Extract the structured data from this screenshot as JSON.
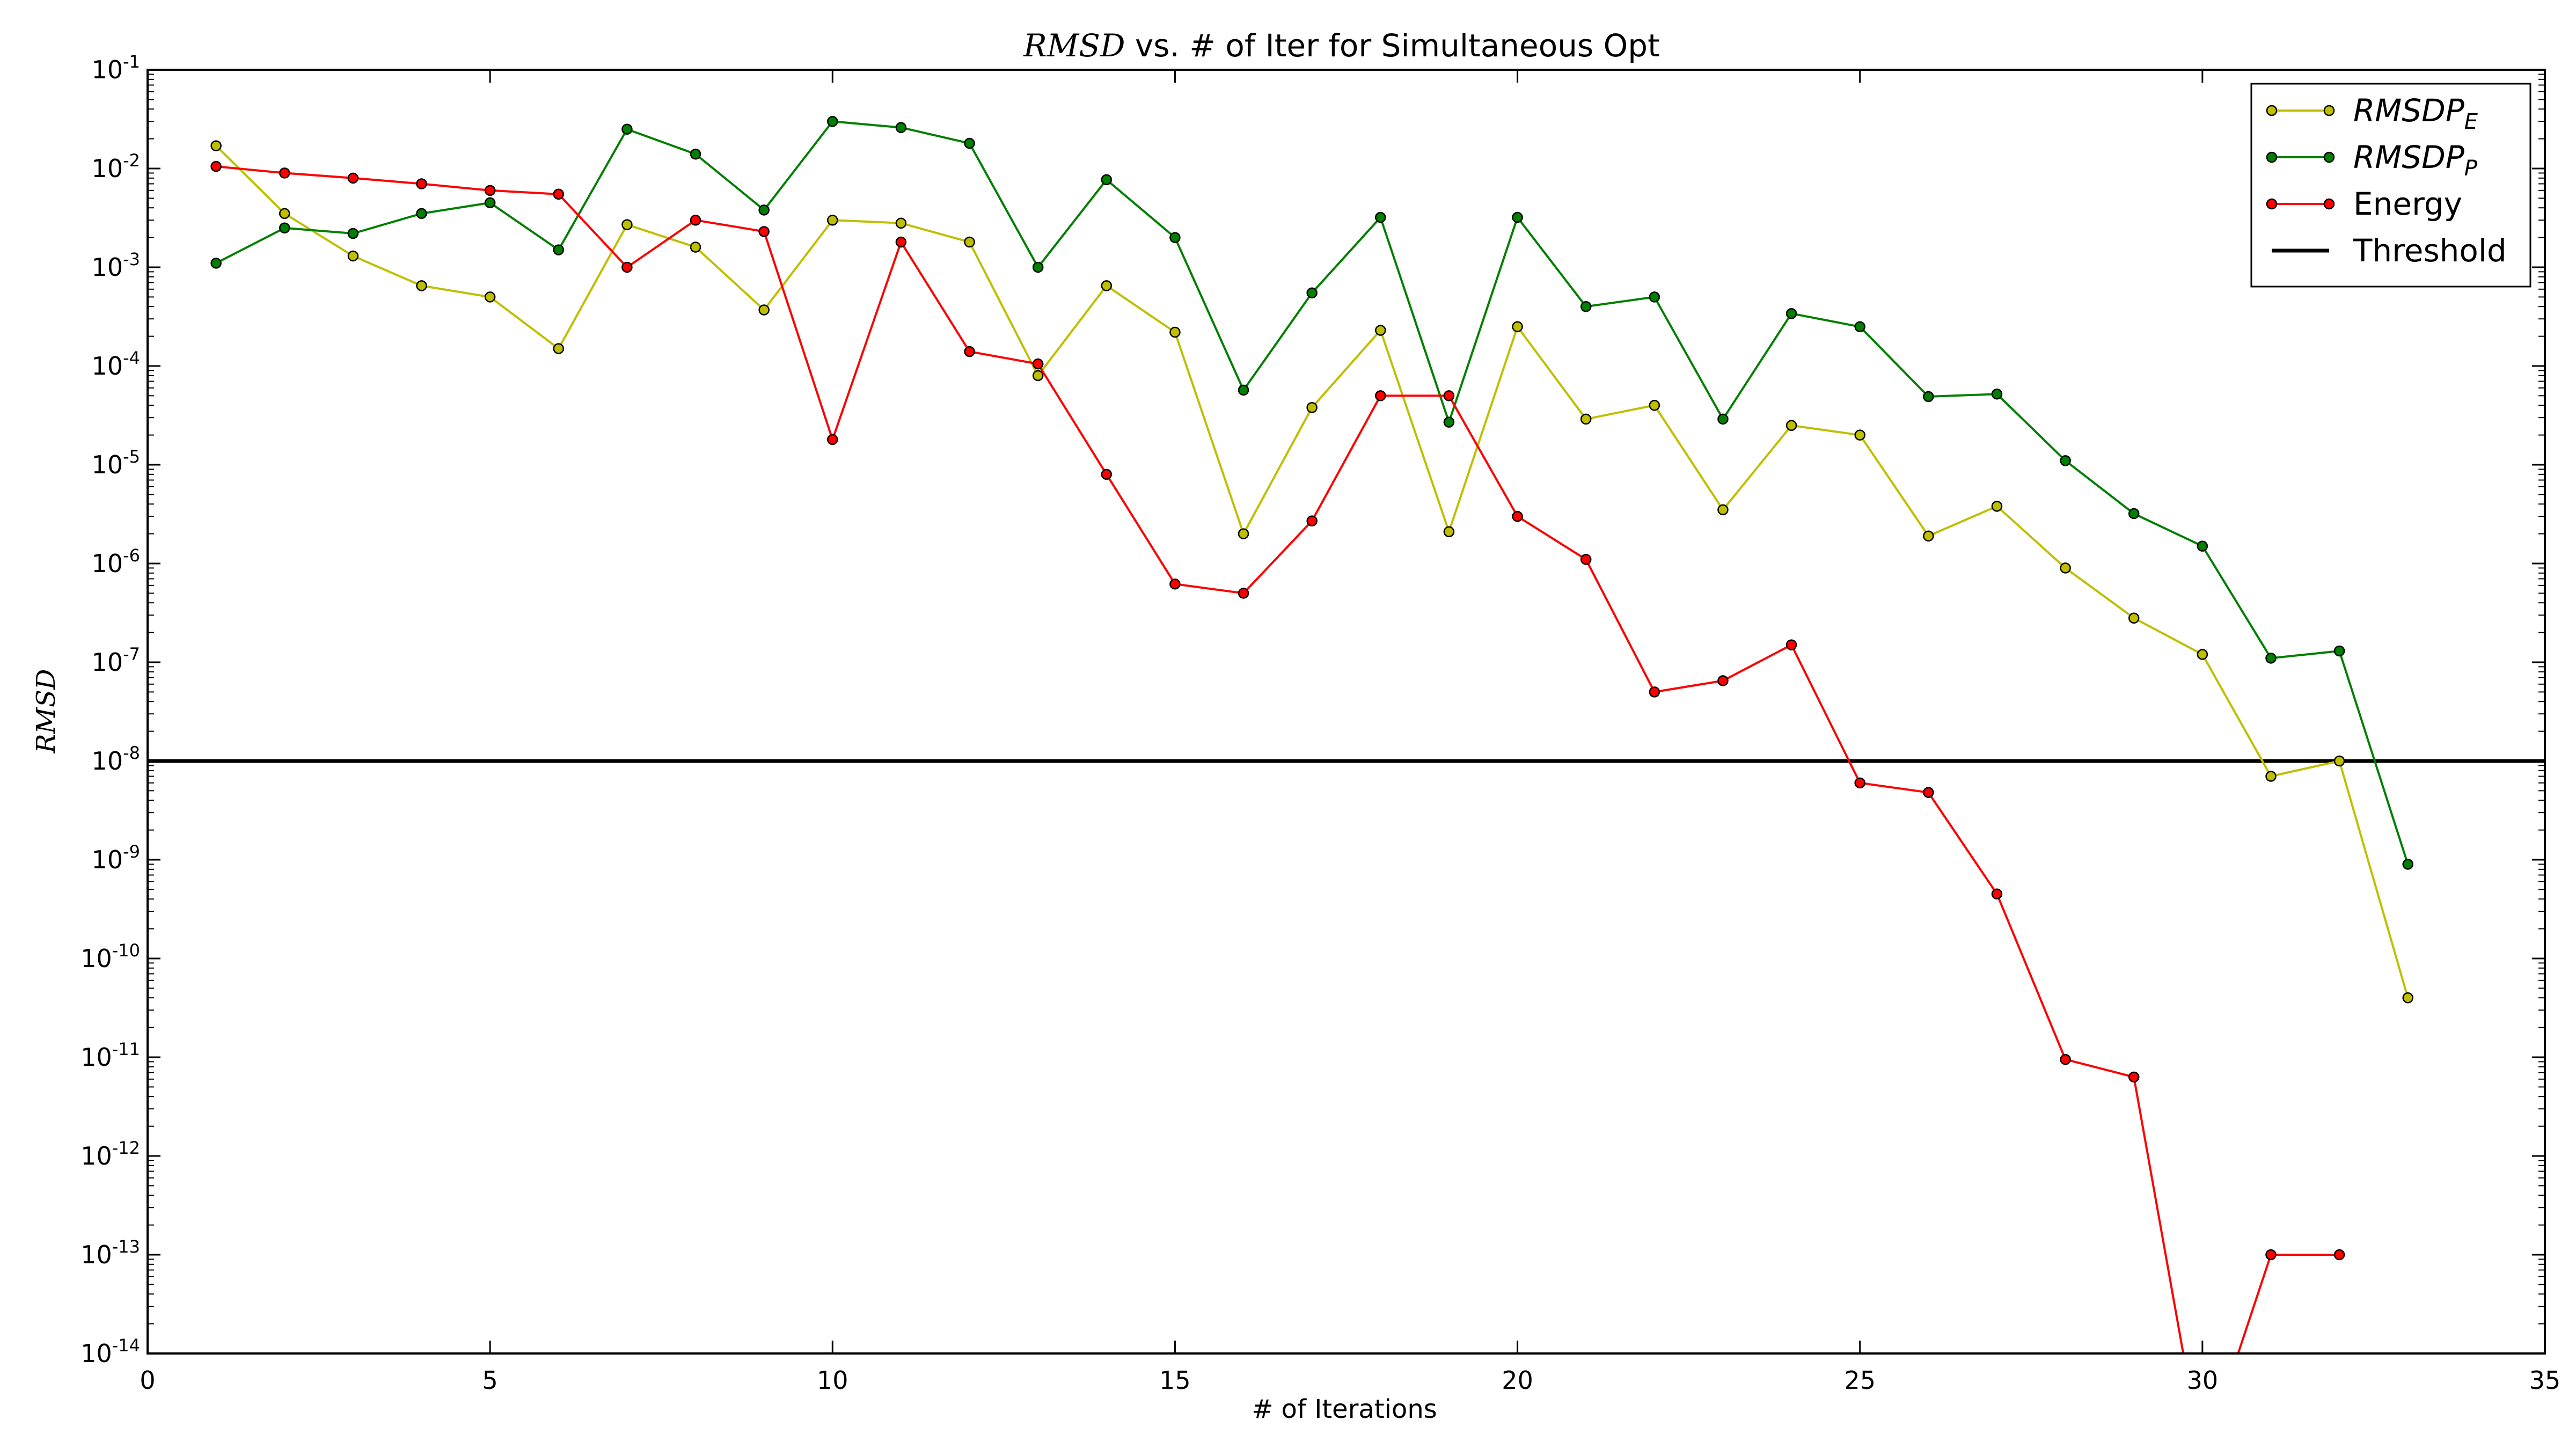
{
  "chart_data": {
    "type": "line",
    "title_math": "RMSD",
    "title_text": " vs. # of Iter for Simultaneous Opt",
    "xlabel": "# of Iterations",
    "ylabel": "RMSD",
    "xlim": [
      0,
      35
    ],
    "ylim": [
      1e-14,
      0.1
    ],
    "yscale": "log",
    "x_ticks": [
      0,
      5,
      10,
      15,
      20,
      25,
      30,
      35
    ],
    "y_tick_exponents": [
      -14,
      -13,
      -12,
      -11,
      -10,
      -9,
      -8,
      -7,
      -6,
      -5,
      -4,
      -3,
      -2,
      -1
    ],
    "y_tick_base": "10",
    "legend_position": "top-right",
    "threshold": {
      "name": "Threshold",
      "value": 1e-08,
      "color": "#000000"
    },
    "series": [
      {
        "name": "RMSDP",
        "name_sub": "E",
        "color": "#bfbf00",
        "x": [
          1,
          2,
          3,
          4,
          5,
          6,
          7,
          8,
          9,
          10,
          11,
          12,
          13,
          14,
          15,
          16,
          17,
          18,
          19,
          20,
          21,
          22,
          23,
          24,
          25,
          26,
          27,
          28,
          29,
          30,
          31,
          32,
          33
        ],
        "y": [
          0.017,
          0.0035,
          0.0013,
          0.00065,
          0.0005,
          0.00015,
          0.0027,
          0.0016,
          0.00037,
          0.003,
          0.0028,
          0.0018,
          8e-05,
          0.00065,
          0.00022,
          2e-06,
          3.8e-05,
          0.00023,
          2.1e-06,
          0.00025,
          2.9e-05,
          4e-05,
          3.5e-06,
          2.5e-05,
          2e-05,
          1.9e-06,
          3.8e-06,
          9e-07,
          2.8e-07,
          1.2e-07,
          7e-09,
          1e-08,
          4e-11
        ]
      },
      {
        "name": "RMSDP",
        "name_sub": "P",
        "color": "#007f00",
        "x": [
          1,
          2,
          3,
          4,
          5,
          6,
          7,
          8,
          9,
          10,
          11,
          12,
          13,
          14,
          15,
          16,
          17,
          18,
          19,
          20,
          21,
          22,
          23,
          24,
          25,
          26,
          27,
          28,
          29,
          30,
          31,
          32,
          33
        ],
        "y": [
          0.0011,
          0.0025,
          0.0022,
          0.0035,
          0.0045,
          0.0015,
          0.025,
          0.014,
          0.0038,
          0.03,
          0.026,
          0.018,
          0.001,
          0.0077,
          0.002,
          5.7e-05,
          0.00055,
          0.0032,
          2.7e-05,
          0.0032,
          0.0004,
          0.0005,
          2.9e-05,
          0.00034,
          0.00025,
          4.9e-05,
          5.2e-05,
          1.1e-05,
          3.2e-06,
          1.5e-06,
          1.1e-07,
          1.3e-07,
          9e-10
        ]
      },
      {
        "name": "Energy",
        "name_sub": "",
        "color": "#ff0000",
        "x": [
          1,
          2,
          3,
          4,
          5,
          6,
          7,
          8,
          9,
          10,
          11,
          12,
          13,
          14,
          15,
          16,
          17,
          18,
          19,
          20,
          21,
          22,
          23,
          24,
          25,
          26,
          27,
          28,
          29,
          30,
          31,
          32
        ],
        "y": [
          0.0105,
          0.009,
          0.008,
          0.007,
          0.006,
          0.0055,
          0.001,
          0.003,
          0.0023,
          1.8e-05,
          0.0018,
          0.00014,
          0.000105,
          8e-06,
          6.2e-07,
          5e-07,
          2.7e-06,
          5e-05,
          5e-05,
          3e-06,
          1.1e-06,
          5e-08,
          6.5e-08,
          1.5e-07,
          6e-09,
          4.8e-09,
          4.5e-10,
          9.5e-12,
          6.3e-12,
          0,
          1e-13,
          1e-13
        ]
      }
    ]
  }
}
